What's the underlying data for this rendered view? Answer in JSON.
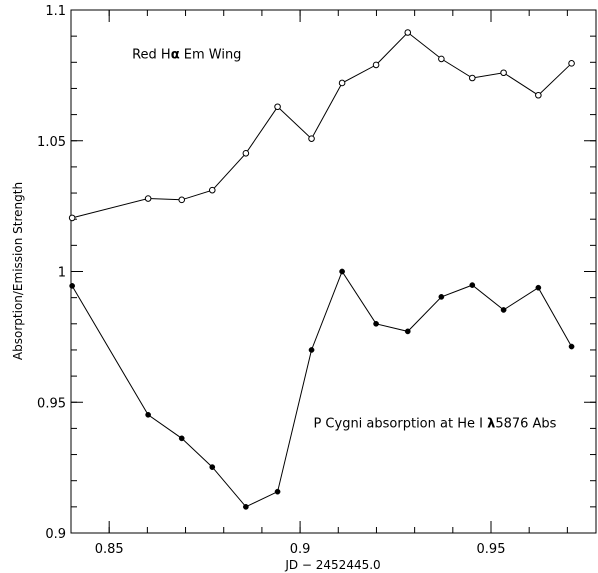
{
  "chart_data": {
    "type": "line",
    "xlabel": "JD − 2452445.0",
    "ylabel": "Absorption/Emission Strength",
    "xlim": [
      0.84,
      0.9775
    ],
    "ylim": [
      0.9,
      1.1
    ],
    "grid": false,
    "x_ticks": [
      {
        "value": 0.85,
        "label": "0.85"
      },
      {
        "value": 0.9,
        "label": "0.9"
      },
      {
        "value": 0.95,
        "label": "0.95"
      }
    ],
    "y_ticks": [
      {
        "value": 0.9,
        "label": "0.9"
      },
      {
        "value": 0.95,
        "label": "0.95"
      },
      {
        "value": 1.0,
        "label": "1"
      },
      {
        "value": 1.05,
        "label": "1.05"
      },
      {
        "value": 1.1,
        "label": "1.1"
      }
    ],
    "series": [
      {
        "marker": "open-circle",
        "x": [
          0.8403,
          0.8602,
          0.869,
          0.877,
          0.8858,
          0.8941,
          0.903,
          0.911,
          0.9199,
          0.9282,
          0.937,
          0.9451,
          0.9533,
          0.9624,
          0.9711
        ],
        "y": [
          1.0205,
          1.0279,
          1.0274,
          1.0311,
          1.0452,
          1.063,
          1.0508,
          1.0721,
          1.079,
          1.0914,
          1.0813,
          1.074,
          1.076,
          1.0674,
          1.0796
        ]
      },
      {
        "marker": "filled-circle",
        "x": [
          0.8403,
          0.8602,
          0.869,
          0.877,
          0.8858,
          0.8941,
          0.903,
          0.911,
          0.9199,
          0.9282,
          0.937,
          0.9451,
          0.9533,
          0.9624,
          0.9711
        ],
        "y": [
          0.9945,
          0.9452,
          0.9362,
          0.9252,
          0.91,
          0.9158,
          0.97,
          1.0,
          0.98,
          0.9771,
          0.9903,
          0.9948,
          0.9853,
          0.9938,
          0.9713
        ]
      }
    ],
    "annotations": [
      {
        "parts": [
          {
            "text": "Red H"
          },
          {
            "text": "α",
            "bold": true
          },
          {
            "text": " Em Wing"
          }
        ],
        "x": 0.856,
        "y": 1.0815
      },
      {
        "parts": [
          {
            "text": "P Cygni absorption at He I "
          },
          {
            "text": "λ",
            "bold": true
          },
          {
            "text": "5876 Abs"
          }
        ],
        "x": 0.9035,
        "y": 0.9404
      }
    ]
  }
}
